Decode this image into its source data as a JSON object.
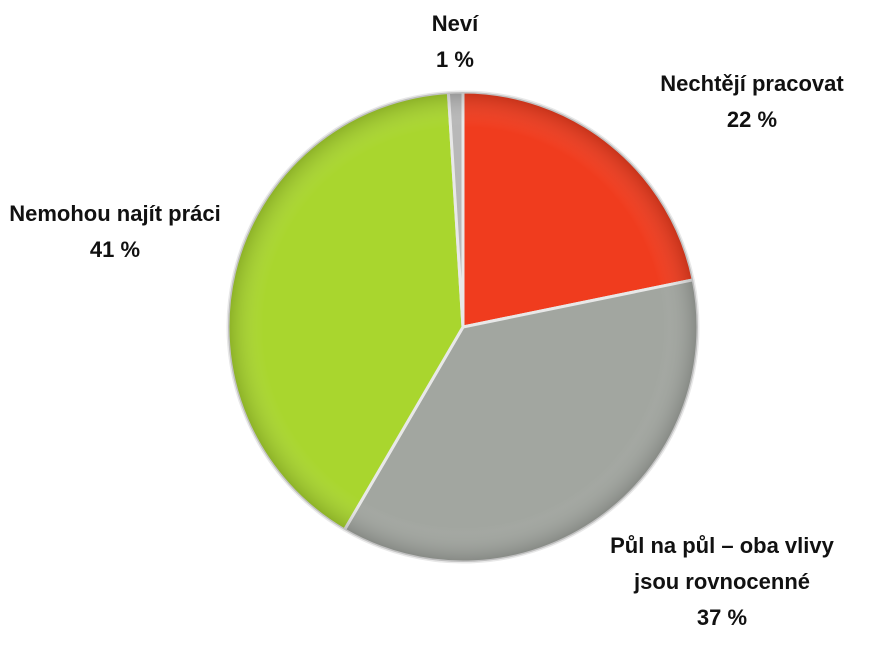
{
  "chart_data": {
    "type": "pie",
    "categories": [
      "Nechtějí pracovat",
      "Půl na půl – oba vlivy jsou rovnocenné",
      "Nemohou najít práci",
      "Neví"
    ],
    "values": [
      22,
      37,
      41,
      1
    ],
    "value_labels": [
      "22 %",
      "37 %",
      "41 %",
      "1 %"
    ],
    "colors": [
      "#f03c1e",
      "#a2a6a0",
      "#a9d62e",
      "#b8b8b8"
    ]
  }
}
